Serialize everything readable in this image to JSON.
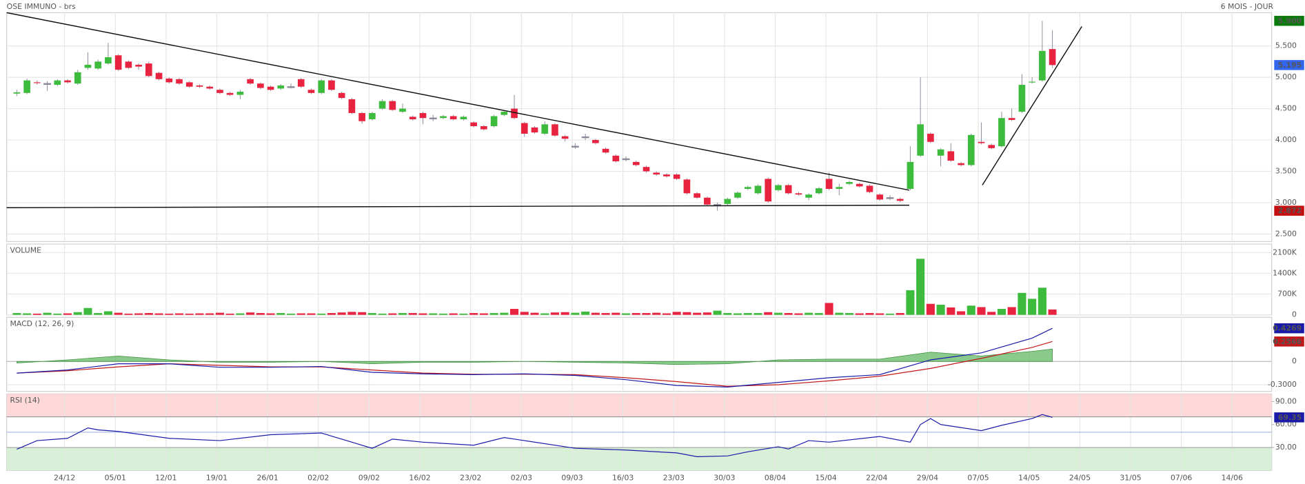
{
  "chart_data": [
    {
      "type": "candlestick",
      "title": "OSE IMMUNO - brs",
      "subtitle": "6 MOIS - JOUR",
      "xlim": [
        -1,
        123.6
      ],
      "xticks": [
        {
          "value": 4.7,
          "label": "24/12"
        },
        {
          "value": 9.7,
          "label": "05/01"
        },
        {
          "value": 14.7,
          "label": "12/01"
        },
        {
          "value": 19.7,
          "label": "19/01"
        },
        {
          "value": 24.7,
          "label": "26/01"
        },
        {
          "value": 29.7,
          "label": "02/02"
        },
        {
          "value": 34.7,
          "label": "09/02"
        },
        {
          "value": 39.7,
          "label": "16/02"
        },
        {
          "value": 44.7,
          "label": "23/02"
        },
        {
          "value": 49.7,
          "label": "02/03"
        },
        {
          "value": 54.7,
          "label": "09/03"
        },
        {
          "value": 59.7,
          "label": "16/03"
        },
        {
          "value": 64.7,
          "label": "23/03"
        },
        {
          "value": 69.7,
          "label": "30/03"
        },
        {
          "value": 74.7,
          "label": "08/04"
        },
        {
          "value": 79.7,
          "label": "15/04"
        },
        {
          "value": 84.7,
          "label": "22/04"
        },
        {
          "value": 89.7,
          "label": "29/04"
        },
        {
          "value": 94.7,
          "label": "07/05"
        },
        {
          "value": 99.7,
          "label": "14/05"
        },
        {
          "value": 104.7,
          "label": "24/05"
        },
        {
          "value": 109.7,
          "label": "31/05"
        },
        {
          "value": 114.7,
          "label": "07/06"
        },
        {
          "value": 119.7,
          "label": "14/06"
        }
      ],
      "ylim": [
        2.38,
        6.03
      ],
      "yticks": [
        {
          "value": 2.5,
          "label": "2.500"
        },
        {
          "value": 3,
          "label": "3.000"
        },
        {
          "value": 3.5,
          "label": "3.500"
        },
        {
          "value": 4,
          "label": "4.000"
        },
        {
          "value": 4.5,
          "label": "4.500"
        },
        {
          "value": 5,
          "label": "5.000"
        },
        {
          "value": 5.5,
          "label": "5.500"
        }
      ],
      "grid": true,
      "colors": {
        "up": "#3dbb3d",
        "down": "#e8233f"
      },
      "open": [
        4.74,
        4.75,
        4.92,
        4.9,
        4.88,
        4.95,
        4.9,
        5.15,
        5.14,
        5.22,
        5.35,
        5.25,
        5.2,
        5.22,
        5.07,
        4.98,
        4.97,
        4.92,
        4.87,
        4.85,
        4.8,
        4.75,
        4.72,
        4.97,
        4.9,
        4.85,
        4.82,
        4.85,
        4.97,
        4.8,
        4.75,
        4.95,
        4.75,
        4.65,
        4.43,
        4.33,
        4.5,
        4.62,
        4.45,
        4.37,
        4.43,
        4.35,
        4.35,
        4.38,
        4.33,
        4.28,
        4.22,
        4.22,
        4.4,
        4.5,
        4.27,
        4.2,
        4.1,
        4.25,
        4.06,
        3.9,
        4.05,
        4.0,
        3.86,
        3.75,
        3.7,
        3.65,
        3.57,
        3.48,
        3.45,
        3.45,
        3.37,
        3.15,
        3.08,
        2.97,
        2.98,
        3.08,
        3.22,
        3.15,
        3.38,
        3.2,
        3.28,
        3.15,
        3.08,
        3.15,
        3.38,
        3.22,
        3.3,
        3.3,
        3.27,
        3.13,
        3.08,
        3.06,
        3.22,
        3.75,
        4.1,
        3.75,
        3.82,
        3.63,
        3.6,
        3.97,
        3.92,
        3.9,
        4.35,
        4.45,
        4.92,
        4.95,
        5.45
      ],
      "high": [
        4.8,
        4.98,
        4.95,
        4.94,
        4.97,
        4.97,
        5.12,
        5.4,
        5.28,
        5.55,
        5.37,
        5.27,
        5.22,
        5.25,
        5.09,
        5.0,
        4.99,
        4.94,
        4.89,
        4.87,
        4.82,
        4.77,
        4.8,
        4.99,
        4.92,
        4.87,
        4.89,
        4.9,
        4.99,
        4.82,
        4.97,
        4.97,
        4.77,
        4.67,
        4.45,
        4.45,
        4.65,
        4.64,
        4.58,
        4.39,
        4.45,
        4.4,
        4.4,
        4.4,
        4.39,
        4.3,
        4.24,
        4.4,
        4.47,
        4.72,
        4.29,
        4.22,
        4.3,
        4.27,
        4.08,
        3.95,
        4.1,
        4.02,
        3.88,
        3.77,
        3.74,
        3.67,
        3.59,
        3.5,
        3.47,
        3.47,
        3.39,
        3.17,
        3.1,
        3.0,
        3.08,
        3.18,
        3.27,
        3.29,
        3.4,
        3.3,
        3.3,
        3.17,
        3.15,
        3.25,
        3.48,
        3.3,
        3.35,
        3.32,
        3.29,
        3.15,
        3.12,
        3.08,
        3.9,
        5.0,
        4.12,
        3.87,
        3.95,
        3.65,
        4.1,
        4.28,
        3.94,
        4.45,
        4.5,
        5.05,
        5.0,
        5.9,
        5.75
      ],
      "low": [
        4.7,
        4.73,
        4.88,
        4.78,
        4.86,
        4.9,
        4.88,
        5.12,
        5.12,
        5.2,
        5.1,
        5.13,
        5.12,
        5.0,
        4.95,
        4.9,
        4.88,
        4.83,
        4.83,
        4.8,
        4.73,
        4.7,
        4.65,
        4.88,
        4.81,
        4.78,
        4.8,
        4.82,
        4.83,
        4.73,
        4.73,
        4.78,
        4.65,
        4.41,
        4.26,
        4.31,
        4.48,
        4.46,
        4.43,
        4.31,
        4.25,
        4.3,
        4.33,
        4.31,
        4.31,
        4.2,
        4.15,
        4.2,
        4.38,
        4.33,
        4.05,
        4.1,
        4.08,
        4.05,
        3.98,
        3.86,
        4.0,
        3.93,
        3.78,
        3.64,
        3.66,
        3.58,
        3.48,
        3.43,
        3.4,
        3.36,
        3.13,
        3.06,
        2.95,
        2.872,
        2.96,
        3.06,
        3.2,
        3.13,
        3.0,
        3.18,
        3.13,
        3.11,
        3.04,
        3.13,
        3.2,
        3.12,
        3.28,
        3.24,
        3.15,
        3.03,
        3.04,
        3.01,
        3.2,
        3.73,
        3.95,
        3.58,
        3.65,
        3.58,
        3.58,
        3.93,
        3.85,
        3.88,
        4.3,
        4.43,
        4.9,
        4.93,
        5.15
      ],
      "close": [
        4.76,
        4.95,
        4.91,
        4.9,
        4.95,
        4.92,
        5.08,
        5.2,
        5.25,
        5.32,
        5.12,
        5.15,
        5.17,
        5.02,
        4.97,
        4.92,
        4.9,
        4.85,
        4.85,
        4.82,
        4.75,
        4.72,
        4.77,
        4.9,
        4.83,
        4.8,
        4.87,
        4.85,
        4.85,
        4.75,
        4.95,
        4.8,
        4.67,
        4.43,
        4.3,
        4.43,
        4.62,
        4.48,
        4.5,
        4.33,
        4.35,
        4.35,
        4.38,
        4.33,
        4.37,
        4.22,
        4.17,
        4.38,
        4.45,
        4.35,
        4.1,
        4.12,
        4.25,
        4.07,
        4.02,
        3.9,
        4.05,
        3.95,
        3.8,
        3.66,
        3.7,
        3.6,
        3.5,
        3.45,
        3.42,
        3.38,
        3.15,
        3.08,
        2.97,
        2.97,
        3.06,
        3.16,
        3.25,
        3.27,
        3.02,
        3.28,
        3.15,
        3.13,
        3.13,
        3.23,
        3.22,
        3.25,
        3.33,
        3.26,
        3.17,
        3.05,
        3.08,
        3.03,
        3.65,
        4.25,
        3.97,
        3.85,
        3.67,
        3.6,
        4.08,
        3.95,
        3.87,
        4.35,
        4.32,
        4.88,
        4.93,
        5.42,
        5.195
      ],
      "price_markers": [
        {
          "value": 5.9,
          "label": "5.900",
          "color": "#0a7a0a"
        },
        {
          "value": 5.195,
          "label": "5.195",
          "color": "#3366ee"
        },
        {
          "value": 2.872,
          "label": "2.872",
          "color": "#c41010"
        }
      ],
      "trendlines": [
        {
          "x": [
            -1,
            87.9
          ],
          "y": [
            6.03,
            3.2
          ]
        },
        {
          "x": [
            -1,
            87.9
          ],
          "y": [
            2.92,
            2.96
          ]
        },
        {
          "x": [
            95.1,
            104.9
          ],
          "y": [
            3.28,
            5.81
          ]
        }
      ]
    },
    {
      "type": "volume",
      "title": "VOLUME",
      "xlim": [
        -1,
        123.6
      ],
      "ylim": [
        0,
        2386
      ],
      "yticks": [
        0,
        {
          "value": 700,
          "label": "700K"
        },
        {
          "value": 1400,
          "label": "1400K"
        },
        {
          "value": 2100,
          "label": "2100K"
        }
      ],
      "values": [
        60,
        50,
        40,
        70,
        40,
        50,
        90,
        230,
        60,
        120,
        70,
        40,
        50,
        60,
        50,
        40,
        50,
        40,
        50,
        50,
        70,
        40,
        50,
        80,
        60,
        50,
        60,
        40,
        50,
        50,
        40,
        60,
        80,
        100,
        90,
        60,
        40,
        50,
        60,
        60,
        50,
        50,
        40,
        50,
        40,
        60,
        50,
        60,
        70,
        200,
        100,
        70,
        50,
        80,
        90,
        70,
        110,
        70,
        60,
        70,
        50,
        60,
        60,
        70,
        50,
        100,
        90,
        70,
        80,
        140,
        60,
        50,
        60,
        60,
        90,
        70,
        60,
        50,
        70,
        60,
        400,
        70,
        60,
        50,
        60,
        50,
        40,
        60,
        830,
        1890,
        370,
        340,
        250,
        120,
        310,
        260,
        100,
        200,
        260,
        740,
        540,
        915,
        180
      ]
    },
    {
      "type": "macd",
      "title": "MACD (12, 26, 9)",
      "xlim": [
        -1,
        123.6
      ],
      "ylim": [
        -0.386,
        0.568
      ],
      "yticks": [
        {
          "value": -0.3,
          "label": "-0.3000"
        },
        0
      ],
      "x": [
        0,
        5,
        10,
        15,
        20,
        25,
        30,
        35,
        40,
        45,
        50,
        55,
        60,
        65,
        70,
        75,
        80,
        85,
        90,
        95,
        100,
        102
      ],
      "series": [
        {
          "color": "#1a1aa8",
          "values": [
            -0.15,
            -0.11,
            -0.03,
            -0.03,
            -0.075,
            -0.075,
            -0.065,
            -0.14,
            -0.16,
            -0.17,
            -0.16,
            -0.18,
            -0.235,
            -0.31,
            -0.33,
            -0.27,
            -0.21,
            -0.17,
            0.02,
            0.11,
            0.3,
            0.4269
          ]
        },
        {
          "color": "#c01818",
          "values": [
            -0.15,
            -0.12,
            -0.07,
            -0.03,
            -0.05,
            -0.07,
            -0.07,
            -0.11,
            -0.15,
            -0.165,
            -0.165,
            -0.17,
            -0.21,
            -0.26,
            -0.32,
            -0.3,
            -0.25,
            -0.19,
            -0.09,
            0.04,
            0.18,
            0.2566
          ]
        },
        {
          "color": "#4caf50",
          "values": [
            -0.02,
            0.02,
            0.07,
            0.02,
            -0.01,
            -0.01,
            0.0,
            -0.03,
            -0.01,
            -0.01,
            0.0,
            -0.01,
            -0.02,
            -0.04,
            -0.03,
            0.02,
            0.03,
            0.03,
            0.12,
            0.07,
            0.13,
            0.16
          ]
        }
      ],
      "last_values": [
        {
          "value": 0.4269,
          "color": "#1a1aa8"
        },
        {
          "value": 0.2566,
          "color": "#c01818"
        }
      ]
    },
    {
      "type": "rsi",
      "title": "RSI (14)",
      "xlim": [
        -1,
        123.6
      ],
      "ylim": [
        0,
        100
      ],
      "yticks": [
        {
          "value": 30,
          "label": "30.00"
        },
        {
          "value": 60,
          "label": "60.00"
        },
        {
          "value": 90,
          "label": "90.00"
        }
      ],
      "zones": [
        {
          "from": 70,
          "to": 100,
          "color": "#fdd8d8"
        },
        {
          "from": 0,
          "to": 30,
          "color": "#d8efd8"
        }
      ],
      "levels": [
        70,
        50,
        30
      ],
      "x": [
        0,
        2,
        5,
        7,
        8,
        10,
        13,
        15,
        20,
        25,
        30,
        35,
        37,
        40,
        45,
        48,
        50,
        55,
        60,
        65,
        67,
        70,
        72,
        75,
        76,
        78,
        80,
        85,
        88,
        89,
        90,
        91,
        95,
        97,
        100,
        101,
        102
      ],
      "color": "#1a1aa8",
      "values": [
        27.8,
        39,
        42,
        55.6,
        53,
        51,
        45.6,
        42,
        39,
        46.7,
        48.9,
        29,
        41,
        37,
        33,
        43,
        39,
        29,
        26.7,
        23,
        18,
        19,
        24.4,
        31,
        28,
        39,
        37,
        44.4,
        37,
        60,
        67.8,
        60,
        52,
        59,
        67.8,
        73,
        69.35
      ],
      "last_value": {
        "value": 69.35,
        "color": "#1a1aa8"
      }
    }
  ]
}
